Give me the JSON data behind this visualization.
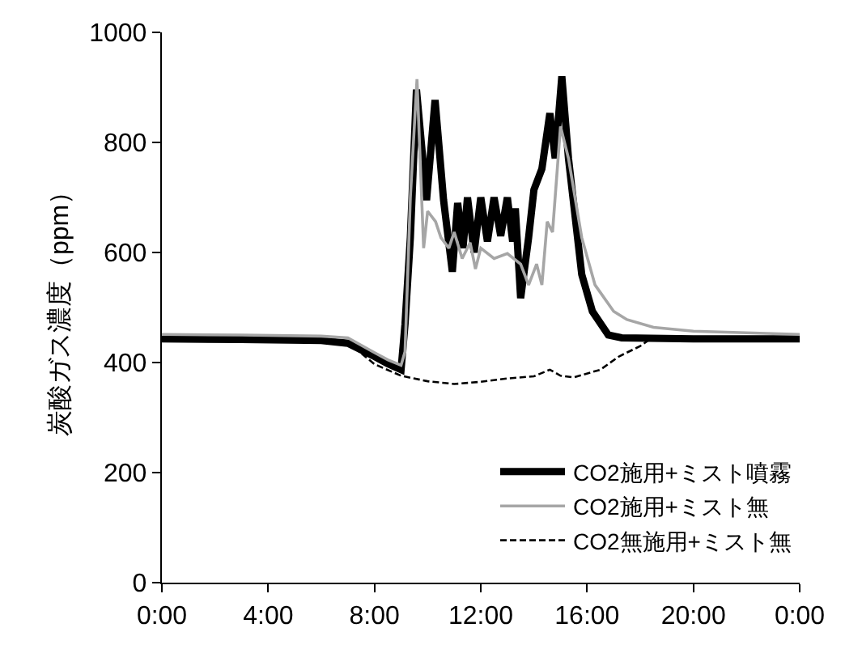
{
  "chart_data": {
    "type": "line",
    "ylabel": "炭酸ガス濃度（ppm）",
    "xlim": [
      0,
      24
    ],
    "xticks": [
      {
        "value": 0,
        "label": "0:00"
      },
      {
        "value": 4,
        "label": "4:00"
      },
      {
        "value": 8,
        "label": "8:00"
      },
      {
        "value": 12,
        "label": "12:00"
      },
      {
        "value": 16,
        "label": "16:00"
      },
      {
        "value": 20,
        "label": "20:00"
      },
      {
        "value": 24,
        "label": "0:00"
      }
    ],
    "ylim": [
      0,
      1000
    ],
    "yticks": [
      0,
      200,
      400,
      600,
      800,
      1000
    ],
    "legend": "bottom right",
    "marker": "none",
    "series": [
      {
        "name": "CO2施用+ミスト噴霧",
        "color": "#000000",
        "line_style": "solid",
        "x": [
          0,
          3,
          6,
          7,
          8,
          8.5,
          9,
          9.15,
          9.35,
          9.58,
          9.96,
          10.28,
          10.6,
          10.93,
          11.13,
          11.33,
          11.5,
          11.75,
          12.0,
          12.25,
          12.5,
          12.75,
          13.0,
          13.2,
          13.3,
          13.5,
          13.8,
          14.0,
          14.3,
          14.6,
          14.8,
          15.05,
          15.3,
          15.8,
          16.2,
          16.8,
          17.3,
          20,
          24
        ],
        "values": [
          443,
          442,
          440,
          435,
          411,
          398,
          387,
          470,
          627,
          896,
          695,
          877,
          695,
          565,
          690,
          608,
          700,
          600,
          700,
          620,
          700,
          630,
          700,
          620,
          680,
          517,
          627,
          714,
          752,
          853,
          771,
          920,
          771,
          560,
          493,
          450,
          445,
          443,
          443
        ]
      },
      {
        "name": "CO2施用+ミスト無",
        "color": "#a6a6a6",
        "line_style": "solid",
        "x": [
          0,
          3,
          6,
          7,
          8,
          8.5,
          9,
          9.15,
          9.35,
          9.6,
          9.85,
          10.0,
          10.3,
          10.5,
          10.8,
          11.0,
          11.3,
          11.6,
          11.8,
          12.0,
          12.5,
          13.0,
          13.5,
          13.8,
          14.1,
          14.3,
          14.5,
          14.7,
          15.0,
          15.3,
          15.8,
          16.3,
          17.0,
          17.5,
          18.5,
          20,
          22,
          24
        ],
        "values": [
          451,
          450,
          448,
          445,
          418,
          405,
          395,
          420,
          700,
          915,
          608,
          675,
          656,
          627,
          608,
          637,
          589,
          618,
          570,
          608,
          589,
          598,
          579,
          541,
          579,
          541,
          656,
          637,
          829,
          771,
          627,
          541,
          493,
          478,
          464,
          457,
          454,
          451
        ]
      },
      {
        "name": "CO2無施用+ミスト無",
        "color": "#000000",
        "line_style": "dashed",
        "x": [
          0,
          3,
          6,
          7,
          8,
          9,
          10,
          11,
          12,
          13,
          14,
          14.6,
          15,
          15.5,
          16.5,
          17.2,
          18,
          18.3,
          20,
          24
        ],
        "values": [
          443,
          442,
          440,
          437,
          397,
          376,
          366,
          361,
          365,
          371,
          375,
          387,
          376,
          373,
          387,
          411,
          430,
          440,
          443,
          443
        ]
      }
    ]
  }
}
